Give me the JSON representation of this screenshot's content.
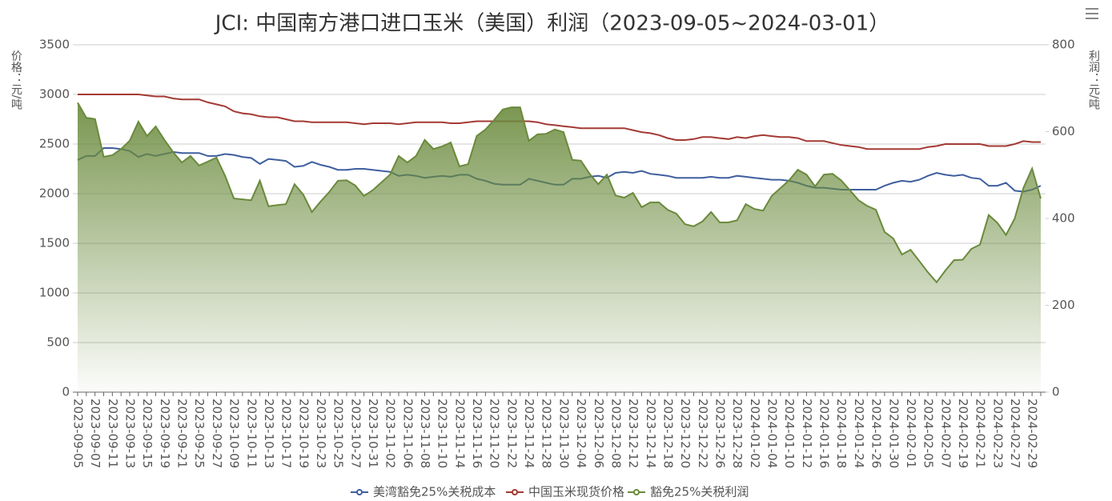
{
  "chart_data": {
    "type": "line",
    "title": "JCI: 中国南方港口进口玉米（美国）利润（2023-09-05~2024-03-01）",
    "y_label": "价格：元/吨",
    "y2_label": "利润：元/吨",
    "categories": [
      "2023-09-05",
      null,
      "2023-09-07",
      null,
      "2023-09-11",
      null,
      "2023-09-13",
      null,
      "2023-09-15",
      null,
      "2023-09-19",
      null,
      "2023-09-21",
      null,
      "2023-09-25",
      null,
      "2023-09-27",
      null,
      "2023-10-09",
      null,
      "2023-10-11",
      null,
      "2023-10-13",
      null,
      "2023-10-17",
      null,
      "2023-10-19",
      null,
      "2023-10-23",
      null,
      "2023-10-25",
      null,
      "2023-10-27",
      null,
      "2023-10-31",
      null,
      "2023-11-02",
      null,
      "2023-11-06",
      null,
      "2023-11-08",
      null,
      "2023-11-10",
      null,
      "2023-11-14",
      null,
      "2023-11-16",
      null,
      "2023-11-20",
      null,
      "2023-11-22",
      null,
      "2023-11-24",
      null,
      "2023-11-28",
      null,
      "2023-11-30",
      null,
      "2023-12-04",
      null,
      "2023-12-06",
      null,
      "2023-12-08",
      null,
      "2023-12-12",
      null,
      "2023-12-14",
      null,
      "2023-12-18",
      null,
      "2023-12-20",
      null,
      "2023-12-22",
      null,
      "2023-12-26",
      null,
      "2023-12-28",
      null,
      "2024-01-02",
      null,
      "2024-01-04",
      null,
      "2024-01-10",
      null,
      "2024-01-12",
      null,
      "2024-01-16",
      null,
      "2024-01-18",
      null,
      "2024-01-24",
      null,
      "2024-01-26",
      null,
      "2024-01-30",
      null,
      "2024-02-01",
      null,
      "2024-02-05",
      null,
      "2024-02-07",
      null,
      "2024-02-19",
      null,
      "2024-02-21",
      null,
      "2024-02-23",
      null,
      "2024-02-27",
      null,
      "2024-02-29",
      null
    ],
    "series": [
      {
        "name": "美湾豁免25%关税成本",
        "color": "#3f5f9e",
        "axis": "y",
        "fill": false,
        "values": [
          2340,
          2380,
          2380,
          2460,
          2460,
          2450,
          2430,
          2370,
          2400,
          2380,
          2400,
          2420,
          2410,
          2410,
          2410,
          2380,
          2380,
          2400,
          2390,
          2370,
          2360,
          2300,
          2350,
          2340,
          2330,
          2270,
          2280,
          2320,
          2290,
          2270,
          2240,
          2240,
          2250,
          2250,
          2240,
          2230,
          2220,
          2180,
          2190,
          2180,
          2160,
          2170,
          2180,
          2170,
          2190,
          2190,
          2150,
          2130,
          2100,
          2090,
          2090,
          2090,
          2150,
          2130,
          2110,
          2090,
          2090,
          2150,
          2150,
          2170,
          2180,
          2160,
          2210,
          2220,
          2210,
          2230,
          2200,
          2190,
          2180,
          2160,
          2160,
          2160,
          2160,
          2170,
          2160,
          2160,
          2180,
          2170,
          2160,
          2150,
          2140,
          2140,
          2130,
          2110,
          2080,
          2060,
          2060,
          2050,
          2040,
          2040,
          2040,
          2040,
          2040,
          2080,
          2110,
          2130,
          2120,
          2140,
          2180,
          2210,
          2190,
          2180,
          2190,
          2160,
          2150,
          2080,
          2080,
          2110,
          2030,
          2020,
          2040,
          2080
        ]
      },
      {
        "name": "中国玉米现货价格",
        "color": "#a33a34",
        "axis": "y",
        "fill": false,
        "values": [
          3000,
          3000,
          3000,
          3000,
          3000,
          3000,
          3000,
          3000,
          2990,
          2980,
          2980,
          2960,
          2950,
          2950,
          2950,
          2920,
          2900,
          2880,
          2830,
          2810,
          2800,
          2780,
          2770,
          2770,
          2750,
          2730,
          2730,
          2720,
          2720,
          2720,
          2720,
          2720,
          2710,
          2700,
          2710,
          2710,
          2710,
          2700,
          2710,
          2720,
          2720,
          2720,
          2720,
          2710,
          2710,
          2720,
          2730,
          2730,
          2730,
          2730,
          2730,
          2730,
          2730,
          2720,
          2700,
          2690,
          2680,
          2670,
          2660,
          2660,
          2660,
          2660,
          2660,
          2660,
          2640,
          2620,
          2610,
          2590,
          2560,
          2540,
          2540,
          2550,
          2570,
          2570,
          2560,
          2550,
          2570,
          2560,
          2580,
          2590,
          2580,
          2570,
          2570,
          2560,
          2530,
          2530,
          2530,
          2510,
          2490,
          2480,
          2470,
          2450,
          2450,
          2450,
          2450,
          2450,
          2450,
          2450,
          2470,
          2480,
          2500,
          2500,
          2500,
          2500,
          2500,
          2480,
          2480,
          2480,
          2500,
          2530,
          2520,
          2520
        ]
      },
      {
        "name": "豁免25%关税利润",
        "color": "#6a8a3c",
        "axis": "y2",
        "fill": true,
        "values": [
          667,
          632,
          629,
          542,
          546,
          560,
          579,
          623,
          590,
          612,
          581,
          553,
          529,
          544,
          522,
          531,
          540,
          498,
          446,
          444,
          442,
          487,
          428,
          431,
          433,
          479,
          455,
          415,
          439,
          461,
          487,
          488,
          476,
          452,
          465,
          483,
          501,
          544,
          529,
          544,
          581,
          560,
          566,
          575,
          520,
          525,
          590,
          605,
          627,
          651,
          656,
          656,
          579,
          594,
          595,
          605,
          599,
          535,
          533,
          503,
          479,
          501,
          453,
          448,
          459,
          426,
          437,
          437,
          420,
          411,
          387,
          382,
          393,
          415,
          391,
          391,
          396,
          433,
          422,
          418,
          452,
          470,
          488,
          512,
          501,
          474,
          501,
          503,
          488,
          465,
          442,
          429,
          420,
          369,
          354,
          317,
          328,
          302,
          276,
          253,
          280,
          304,
          305,
          330,
          340,
          408,
          390,
          362,
          400,
          470,
          515,
          446
        ]
      }
    ],
    "ylim": [
      0,
      3500
    ],
    "yticks": [
      0,
      500,
      1000,
      1500,
      2000,
      2500,
      3000,
      3500
    ],
    "y2lim": [
      0,
      800
    ],
    "y2ticks": [
      0,
      200,
      400,
      600,
      800
    ],
    "grid": true,
    "legend": "bottom"
  }
}
